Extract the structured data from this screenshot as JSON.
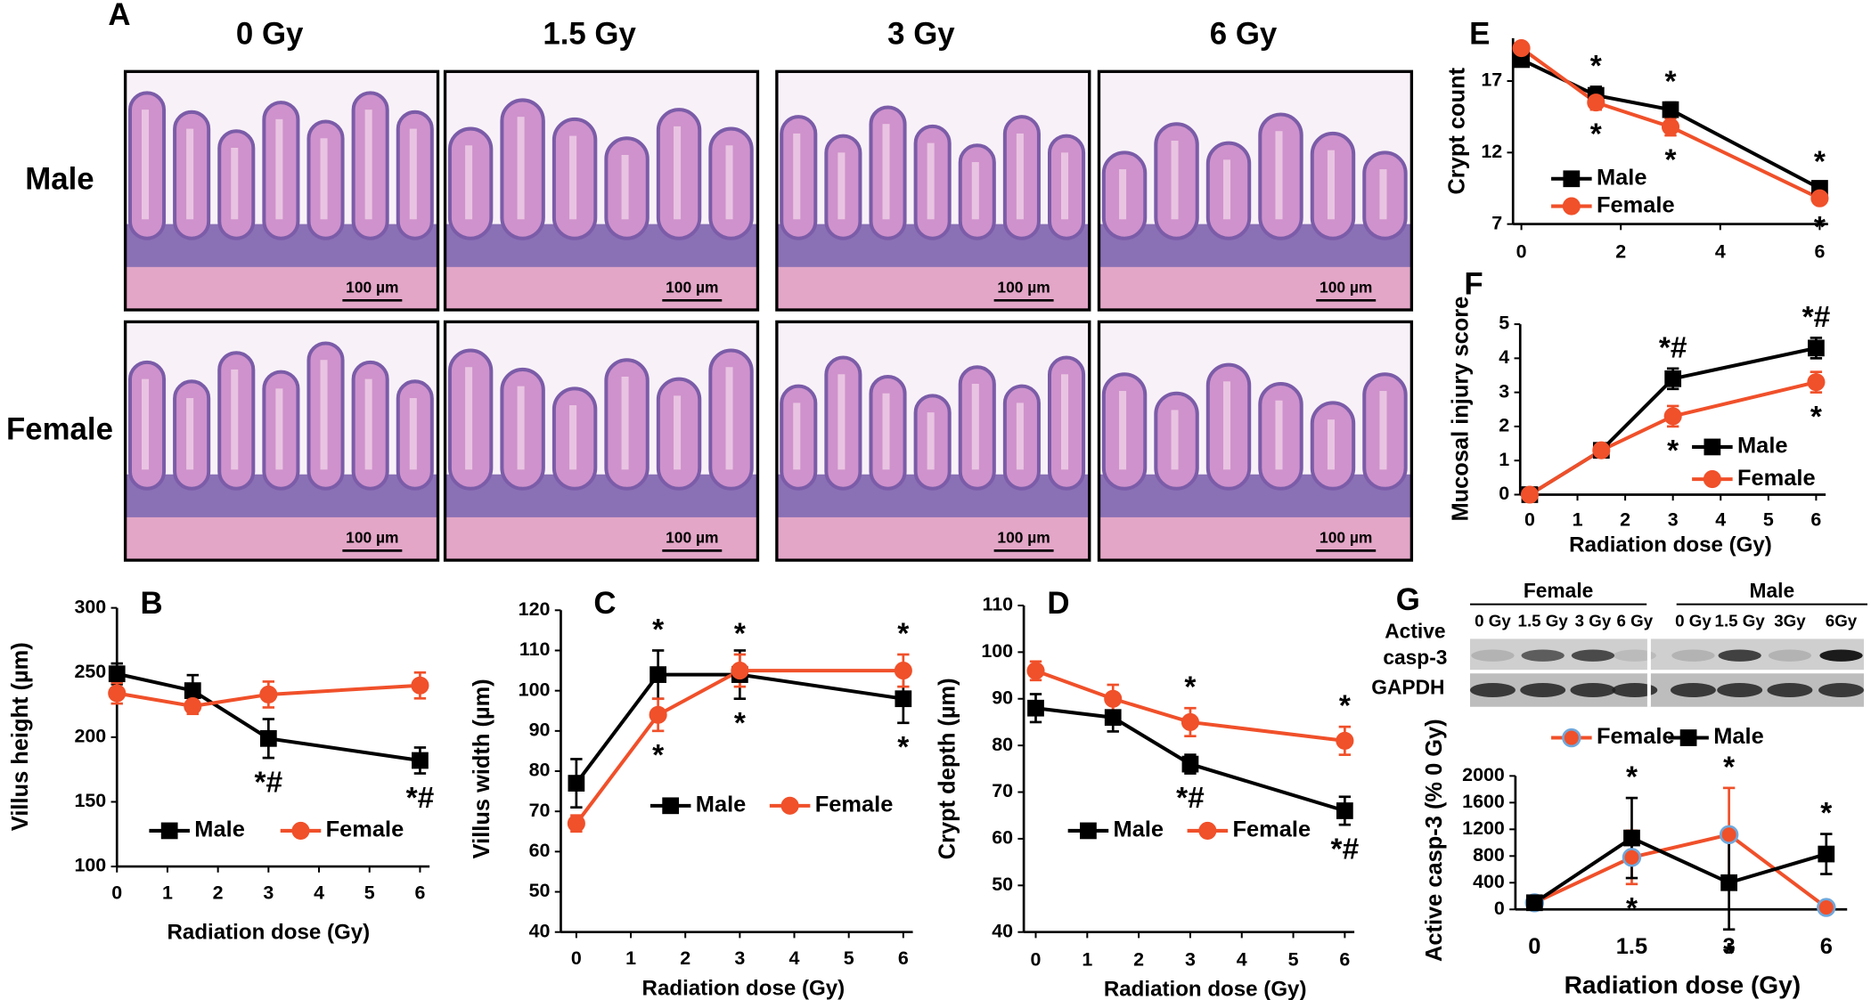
{
  "panel_a": {
    "panel": "A",
    "columns": [
      "0 Gy",
      "1.5 Gy",
      "3 Gy",
      "6 Gy"
    ],
    "rows": [
      "Male",
      "Female"
    ],
    "scale_labels": [
      "100 µm",
      "100 µm",
      "100 µm",
      "100 µm",
      "100 µm",
      "100 µm",
      "100 µm",
      "100 µm"
    ]
  },
  "blot": {
    "groups": [
      "Female",
      "Male"
    ],
    "lanes": [
      "0 Gy",
      "1.5 Gy",
      "3 Gy",
      "6 Gy",
      "0 Gy",
      "1.5 Gy",
      "3Gy",
      "6Gy"
    ],
    "rows": [
      "Active",
      "casp-3",
      "GAPDH"
    ]
  },
  "chart_data": [
    {
      "type": "line",
      "panel": "B",
      "x": [
        0,
        1.5,
        3,
        6
      ],
      "xlim": [
        0,
        6
      ],
      "xticks": [
        0,
        1,
        2,
        3,
        4,
        5,
        6
      ],
      "ylim": [
        100,
        300
      ],
      "yticks": [
        100,
        150,
        200,
        250,
        300
      ],
      "y_label": "Villus height (µm)",
      "x_label": "Radiation dose (Gy)",
      "series": [
        {
          "name": "Male",
          "color": "#000000",
          "marker": "square",
          "values": [
            249,
            236,
            199,
            182
          ],
          "errors": [
            8,
            12,
            15,
            10
          ],
          "annotations": [
            null,
            null,
            "*#",
            "*#"
          ]
        },
        {
          "name": "Female",
          "color": "#f0502a",
          "marker": "circle",
          "values": [
            234,
            224,
            233,
            240
          ],
          "errors": [
            8,
            6,
            10,
            10
          ],
          "annotations": [
            null,
            null,
            null,
            null
          ]
        }
      ]
    },
    {
      "type": "line",
      "panel": "C",
      "x": [
        0,
        1.5,
        3,
        6
      ],
      "xlim": [
        0,
        6
      ],
      "xticks": [
        0,
        1,
        2,
        3,
        4,
        5,
        6
      ],
      "ylim": [
        40,
        120
      ],
      "yticks": [
        40,
        50,
        60,
        70,
        80,
        90,
        100,
        110,
        120
      ],
      "y_label": "Villus width (µm)",
      "x_label": "Radiation dose (Gy)",
      "series": [
        {
          "name": "Male",
          "color": "#000000",
          "marker": "square",
          "values": [
            77,
            104,
            104,
            98
          ],
          "errors": [
            6,
            6,
            6,
            6
          ],
          "annotations": [
            null,
            "*",
            "*",
            "*"
          ]
        },
        {
          "name": "Female",
          "color": "#f0502a",
          "marker": "circle",
          "values": [
            67,
            94,
            105,
            105
          ],
          "errors": [
            2,
            4,
            4,
            4
          ],
          "annotations": [
            null,
            "*",
            "*",
            "*"
          ]
        }
      ]
    },
    {
      "type": "line",
      "panel": "D",
      "x": [
        0,
        1.5,
        3,
        6
      ],
      "xlim": [
        0,
        6
      ],
      "xticks": [
        0,
        1,
        2,
        3,
        4,
        5,
        6
      ],
      "ylim": [
        40,
        110
      ],
      "yticks": [
        40,
        50,
        60,
        70,
        80,
        90,
        100,
        110
      ],
      "y_label": "Crypt depth (µm)",
      "x_label": "Radiation dose (Gy)",
      "series": [
        {
          "name": "Male",
          "color": "#000000",
          "marker": "square",
          "values": [
            88,
            86,
            76,
            66
          ],
          "errors": [
            3,
            3,
            2,
            3
          ],
          "annotations": [
            null,
            null,
            "*#",
            "*#"
          ]
        },
        {
          "name": "Female",
          "color": "#f0502a",
          "marker": "circle",
          "values": [
            96,
            90,
            85,
            81
          ],
          "errors": [
            2,
            3,
            3,
            3
          ],
          "annotations": [
            null,
            null,
            "*",
            "*"
          ]
        }
      ]
    },
    {
      "type": "line",
      "panel": "E",
      "x": [
        0,
        1.5,
        3,
        6
      ],
      "xlim": [
        0,
        6
      ],
      "xticks": [
        0,
        2,
        4,
        6
      ],
      "ylim": [
        7,
        20
      ],
      "yticks": [
        7,
        12,
        17
      ],
      "y_label": "Crypt count",
      "series": [
        {
          "name": "Male",
          "color": "#000000",
          "marker": "square",
          "values": [
            18.5,
            16,
            15,
            9.5
          ],
          "errors": [
            0.3,
            0.6,
            0.5,
            0.4
          ],
          "annotations": [
            null,
            "*",
            "*",
            "*"
          ]
        },
        {
          "name": "Female",
          "color": "#f0502a",
          "marker": "circle",
          "values": [
            19.3,
            15.5,
            13.8,
            8.8
          ],
          "errors": [
            0.3,
            0.5,
            0.6,
            0.3
          ],
          "annotations": [
            null,
            "*",
            "*",
            "*"
          ]
        }
      ]
    },
    {
      "type": "line",
      "panel": "F",
      "x": [
        0,
        1.5,
        3,
        6
      ],
      "xlim": [
        0,
        6
      ],
      "xticks": [
        0,
        1,
        2,
        3,
        4,
        5,
        6
      ],
      "ylim": [
        0,
        5
      ],
      "yticks": [
        0,
        1,
        2,
        3,
        4,
        5
      ],
      "y_label": "Mucosal injury score",
      "x_label": "Radiation dose (Gy)",
      "series": [
        {
          "name": "Male",
          "color": "#000000",
          "marker": "square",
          "values": [
            0,
            1.3,
            3.4,
            4.3
          ],
          "errors": [
            0.1,
            0.2,
            0.3,
            0.3
          ],
          "annotations": [
            null,
            null,
            "*#",
            "*#"
          ]
        },
        {
          "name": "Female",
          "color": "#f0502a",
          "marker": "circle",
          "values": [
            0,
            1.3,
            2.3,
            3.3
          ],
          "errors": [
            0.1,
            0.2,
            0.3,
            0.3
          ],
          "annotations": [
            null,
            null,
            "*",
            "*"
          ]
        }
      ]
    },
    {
      "type": "line",
      "panel": "G",
      "categories": [
        "0",
        "1.5",
        "3",
        "6"
      ],
      "ylim": [
        0,
        2000
      ],
      "yticks": [
        0,
        400,
        800,
        1200,
        1600,
        2000
      ],
      "y_label": "Active casp-3 (% 0 Gy)",
      "x_label": "Radiation dose (Gy)",
      "series": [
        {
          "name": "Female",
          "color": "#f0502a",
          "marker": "circle",
          "marker_edge": "#6fa8dc",
          "values": [
            100,
            780,
            1120,
            30
          ],
          "errors": [
            0,
            400,
            700,
            0
          ],
          "annotations": [
            null,
            "*",
            "*",
            null
          ]
        },
        {
          "name": "Male",
          "color": "#000000",
          "marker": "square",
          "values": [
            100,
            1070,
            400,
            830
          ],
          "errors": [
            0,
            600,
            700,
            300
          ],
          "annotations": [
            null,
            "*",
            "*",
            "*"
          ]
        }
      ]
    }
  ]
}
